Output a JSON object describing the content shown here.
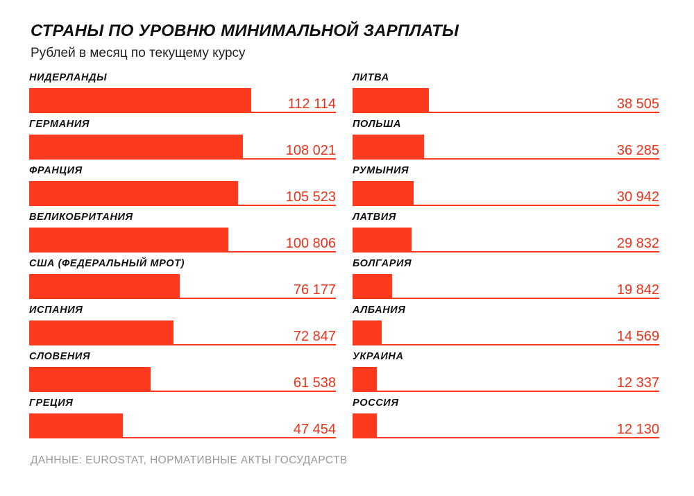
{
  "header": {
    "title": "СТРАНЫ ПО УРОВНЮ МИНИМАЛЬНОЙ ЗАРПЛАТЫ",
    "subtitle": "Рублей в месяц по текущему курсу"
  },
  "footer": {
    "source": "ДАННЫЕ: EUROSTAT, НОРМАТИВНЫЕ АКТЫ ГОСУДАРСТВ"
  },
  "colors": {
    "bar": "#fd3a1d",
    "text": "#111111",
    "value_text": "#e8331a",
    "source_text": "#9a9a9a"
  },
  "chart_data": {
    "type": "bar",
    "orientation": "horizontal",
    "title": "СТРАНЫ ПО УРОВНЮ МИНИМАЛЬНОЙ ЗАРПЛАТЫ",
    "subtitle": "Рублей в месяц по текущему курсу",
    "xlim": [
      0,
      155000
    ],
    "grid": false,
    "legend": "none",
    "columns": [
      {
        "categories": [
          "НИДЕРЛАНДЫ",
          "ГЕРМАНИЯ",
          "ФРАНЦИЯ",
          "ВЕЛИКОБРИТАНИЯ",
          "США (ФЕДЕРАЛЬНЫЙ МРОТ)",
          "ИСПАНИЯ",
          "СЛОВЕНИЯ",
          "ГРЕЦИЯ"
        ],
        "values": [
          112114,
          108021,
          105523,
          100806,
          76177,
          72847,
          61538,
          47454
        ],
        "labels": [
          "112 114",
          "108 021",
          "105 523",
          "100 806",
          "76 177",
          "72 847",
          "61 538",
          "47 454"
        ]
      },
      {
        "categories": [
          "ЛИТВА",
          "ПОЛЬША",
          "РУМЫНИЯ",
          "ЛАТВИЯ",
          "БОЛГАРИЯ",
          "АЛБАНИЯ",
          "УКРАИНА",
          "РОССИЯ"
        ],
        "values": [
          38505,
          36285,
          30942,
          29832,
          19842,
          14569,
          12337,
          12130
        ],
        "labels": [
          "38 505",
          "36 285",
          "30 942",
          "29 832",
          "19 842",
          "14 569",
          "12 337",
          "12 130"
        ]
      }
    ]
  }
}
